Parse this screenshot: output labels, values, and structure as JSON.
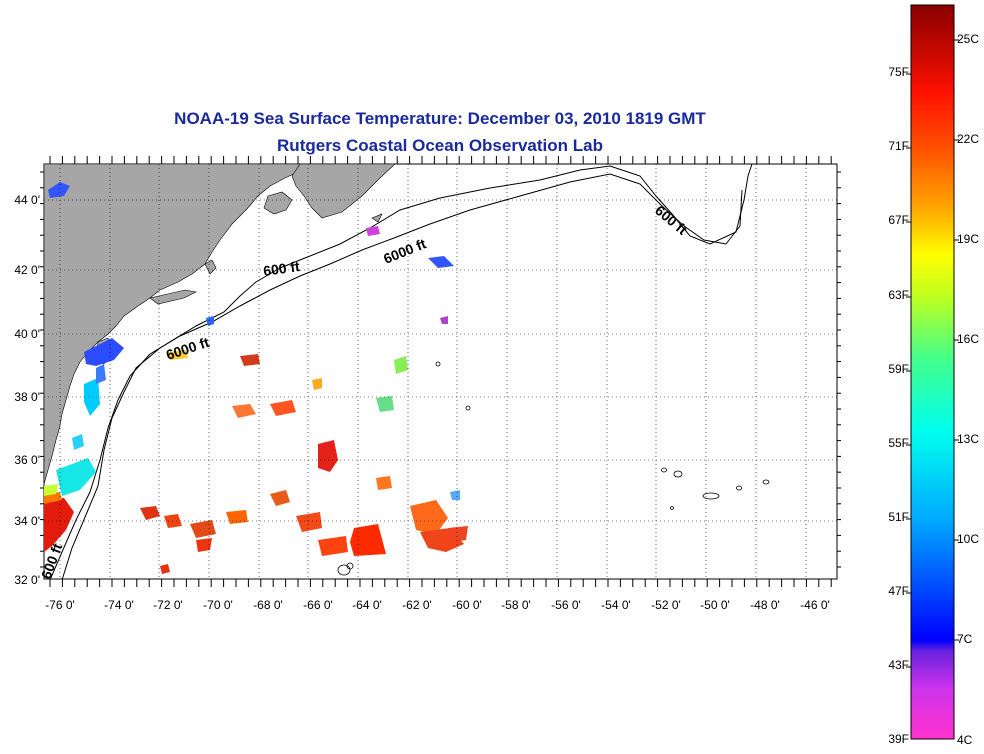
{
  "title": "NOAA-19 Sea Surface Temperature:  December 03, 2010 1819 GMT",
  "subtitle": "Rutgers Coastal Ocean Observation Lab",
  "lat_labels": [
    "44 0'",
    "42 0'",
    "40 0'",
    "38 0'",
    "36 0'",
    "34 0'",
    "32 0'"
  ],
  "lon_labels": [
    "-76 0'",
    "-74 0'",
    "-72 0'",
    "-70 0'",
    "-68 0'",
    "-66 0'",
    "-64 0'",
    "-62 0'",
    "-60 0'",
    "-58 0'",
    "-56 0'",
    "-54 0'",
    "-52 0'",
    "-50 0'",
    "-48 0'",
    "-46 0'"
  ],
  "contour_labels": [
    "600 ft",
    "6000 ft",
    "6000 ft",
    "600 ft",
    "600 ft"
  ],
  "colorbar": {
    "fahrenheit": [
      "75F",
      "71F",
      "67F",
      "63F",
      "59F",
      "55F",
      "51F",
      "47F",
      "43F",
      "39F"
    ],
    "celsius": [
      "25C",
      "22C",
      "19C",
      "16C",
      "13C",
      "10C",
      "7C",
      "4C"
    ]
  },
  "colors": {
    "title": "#1a2a9c",
    "land": "#a6a6a6",
    "ocean": "#ffffff"
  }
}
